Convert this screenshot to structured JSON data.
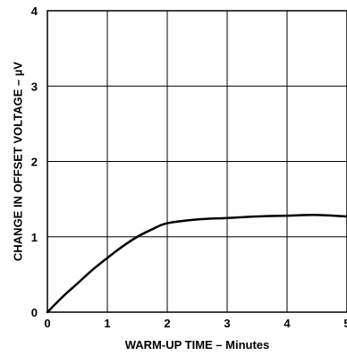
{
  "chart_data": {
    "type": "line",
    "title": "",
    "xlabel": "WARM-UP TIME – Minutes",
    "ylabel": "CHANGE IN OFFSET VOLTAGE – µV",
    "xlim": [
      0,
      5
    ],
    "ylim": [
      0,
      4
    ],
    "x_ticks": [
      "0",
      "1",
      "2",
      "3",
      "4",
      "5"
    ],
    "y_ticks": [
      "0",
      "1",
      "2",
      "3",
      "4"
    ],
    "grid": true,
    "series": [
      {
        "x": [
          0,
          0.25,
          0.5,
          0.75,
          1.0,
          1.25,
          1.5,
          1.75,
          2.0,
          2.5,
          3.0,
          3.5,
          4.0,
          4.5,
          5.0
        ],
        "y": [
          0,
          0.2,
          0.38,
          0.56,
          0.72,
          0.87,
          1.0,
          1.1,
          1.18,
          1.23,
          1.25,
          1.27,
          1.28,
          1.29,
          1.27
        ]
      }
    ],
    "colors": {
      "line": "#000000",
      "grid": "#000000"
    }
  }
}
